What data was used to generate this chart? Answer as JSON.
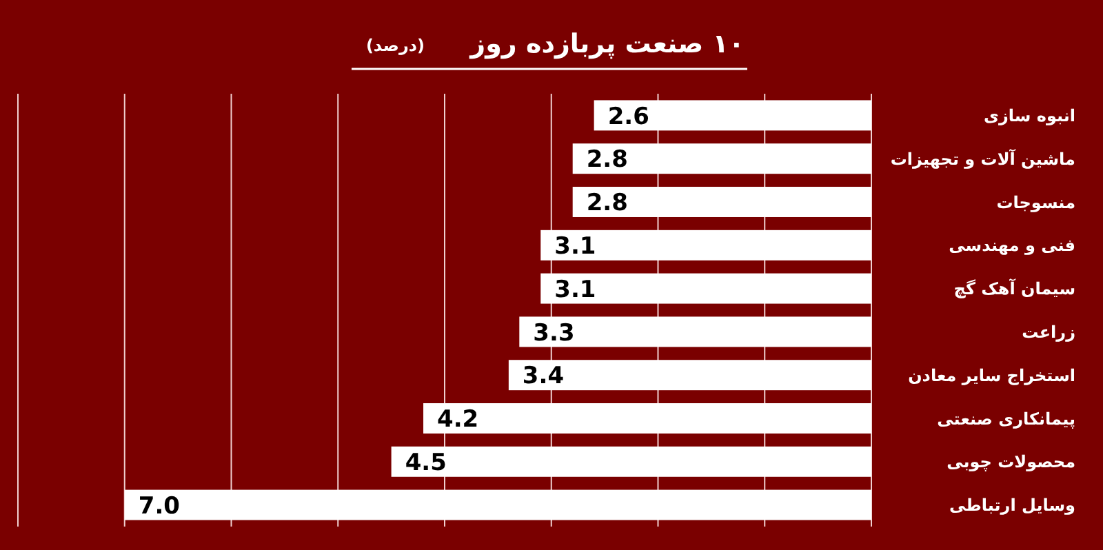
{
  "chart_data": {
    "type": "bar",
    "orientation": "horizontal",
    "title": "۱۰ صنعت پربازده روز",
    "subtitle": "(درصد)",
    "categories": [
      "انبوه سازی",
      "ماشین آلات و تجهیزات",
      "منسوجات",
      "فنی و مهندسی",
      "سیمان آهک گچ",
      "زراعت",
      "استخراج سایر معادن",
      "پیمانکاری صنعتی",
      "محصولات چوبی",
      "وسایل ارتباطی"
    ],
    "values": [
      2.6,
      2.8,
      2.8,
      3.1,
      3.1,
      3.3,
      3.4,
      4.2,
      4.5,
      7.0
    ],
    "color": "#ffffff",
    "value_labels": [
      "2.6",
      "2.8",
      "2.8",
      "3.1",
      "3.1",
      "3.3",
      "3.4",
      "4.2",
      "4.5",
      "7.0"
    ],
    "xlim": [
      8,
      0
    ],
    "xticks": [
      {
        "value": 0,
        "label": null
      },
      {
        "value": 1,
        "label": null
      },
      {
        "value": 2,
        "label": null
      },
      {
        "value": 3,
        "label": null
      },
      {
        "value": 4,
        "label": null
      },
      {
        "value": 5,
        "label": null
      },
      {
        "value": 6,
        "label": null
      },
      {
        "value": 7,
        "label": null
      },
      {
        "value": 8,
        "label": null
      }
    ],
    "grid": "x"
  }
}
